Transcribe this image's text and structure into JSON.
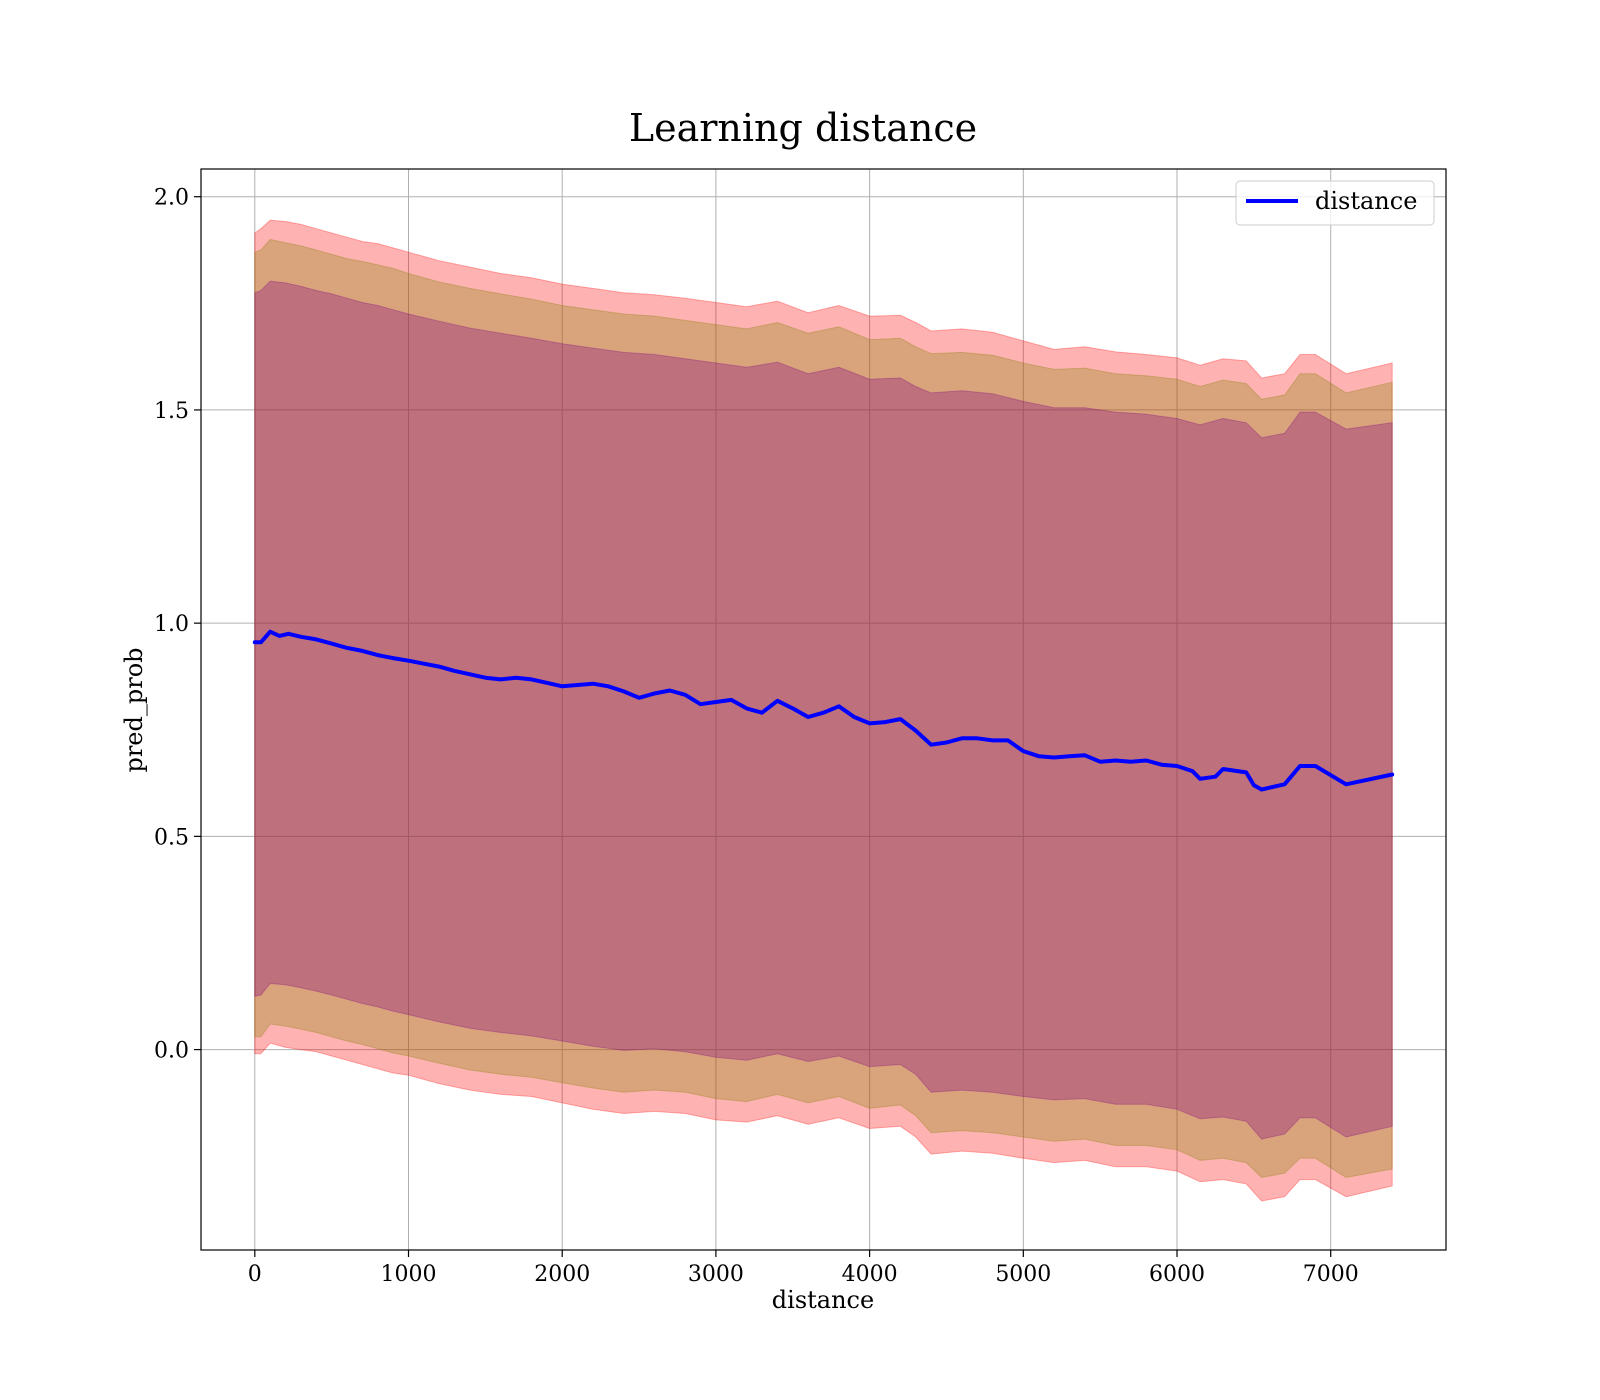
{
  "chart_data": {
    "type": "line",
    "title": "Learning distance",
    "xlabel": "distance",
    "ylabel": "pred_prob",
    "xlim": [
      -350,
      7750
    ],
    "ylim": [
      -0.47,
      2.065
    ],
    "xticks": [
      0,
      1000,
      2000,
      3000,
      4000,
      5000,
      6000,
      7000
    ],
    "xtick_labels": [
      "0",
      "1000",
      "2000",
      "3000",
      "4000",
      "5000",
      "6000",
      "7000"
    ],
    "yticks": [
      0.0,
      0.5,
      1.0,
      1.5,
      2.0
    ],
    "ytick_labels": [
      "0.0",
      "0.5",
      "1.0",
      "1.5",
      "2.0"
    ],
    "grid": true,
    "legend_position": "top-right",
    "series": [
      {
        "name": "distance",
        "color": "#0000ff",
        "x": [
          0,
          40,
          100,
          160,
          220,
          300,
          400,
          500,
          600,
          700,
          800,
          900,
          1000,
          1100,
          1200,
          1300,
          1400,
          1500,
          1600,
          1700,
          1800,
          1900,
          2000,
          2100,
          2200,
          2300,
          2400,
          2500,
          2600,
          2700,
          2800,
          2900,
          3000,
          3100,
          3200,
          3300,
          3400,
          3500,
          3600,
          3700,
          3800,
          3900,
          4000,
          4100,
          4200,
          4300,
          4400,
          4500,
          4600,
          4700,
          4800,
          4900,
          5000,
          5100,
          5200,
          5300,
          5400,
          5500,
          5600,
          5700,
          5800,
          5900,
          6000,
          6100,
          6150,
          6250,
          6300,
          6450,
          6500,
          6550,
          6700,
          6800,
          6900,
          7100,
          7400
        ],
        "y": [
          0.955,
          0.955,
          0.98,
          0.97,
          0.975,
          0.968,
          0.962,
          0.952,
          0.942,
          0.935,
          0.925,
          0.918,
          0.912,
          0.905,
          0.898,
          0.888,
          0.88,
          0.872,
          0.868,
          0.872,
          0.868,
          0.86,
          0.852,
          0.855,
          0.858,
          0.852,
          0.84,
          0.825,
          0.835,
          0.842,
          0.832,
          0.81,
          0.815,
          0.82,
          0.8,
          0.79,
          0.818,
          0.8,
          0.78,
          0.79,
          0.805,
          0.78,
          0.765,
          0.768,
          0.775,
          0.748,
          0.715,
          0.72,
          0.73,
          0.73,
          0.725,
          0.725,
          0.7,
          0.688,
          0.685,
          0.688,
          0.69,
          0.675,
          0.678,
          0.675,
          0.678,
          0.668,
          0.665,
          0.653,
          0.635,
          0.64,
          0.658,
          0.65,
          0.62,
          0.61,
          0.622,
          0.665,
          0.665,
          0.622,
          0.645
        ]
      }
    ],
    "bands": [
      {
        "color": "#ff0000",
        "opacity": 0.3,
        "x": [
          0,
          40,
          100,
          200,
          300,
          400,
          500,
          600,
          700,
          800,
          900,
          1000,
          1200,
          1400,
          1600,
          1800,
          2000,
          2200,
          2400,
          2600,
          2800,
          3000,
          3200,
          3400,
          3600,
          3800,
          4000,
          4200,
          4300,
          4400,
          4600,
          4800,
          5000,
          5200,
          5400,
          5600,
          5800,
          6000,
          6150,
          6300,
          6450,
          6550,
          6700,
          6800,
          6900,
          7100,
          7400
        ],
        "upper": [
          1.915,
          1.925,
          1.945,
          1.942,
          1.935,
          1.925,
          1.915,
          1.905,
          1.895,
          1.89,
          1.88,
          1.87,
          1.85,
          1.835,
          1.82,
          1.81,
          1.795,
          1.785,
          1.775,
          1.77,
          1.762,
          1.752,
          1.742,
          1.755,
          1.728,
          1.745,
          1.72,
          1.722,
          1.705,
          1.685,
          1.69,
          1.682,
          1.662,
          1.642,
          1.648,
          1.636,
          1.63,
          1.622,
          1.605,
          1.62,
          1.615,
          1.575,
          1.585,
          1.63,
          1.63,
          1.585,
          1.61
        ],
        "lower": [
          -0.01,
          -0.01,
          0.015,
          0.005,
          0.0,
          -0.005,
          -0.015,
          -0.025,
          -0.035,
          -0.045,
          -0.055,
          -0.06,
          -0.08,
          -0.095,
          -0.105,
          -0.11,
          -0.125,
          -0.14,
          -0.15,
          -0.145,
          -0.15,
          -0.165,
          -0.17,
          -0.155,
          -0.175,
          -0.16,
          -0.185,
          -0.18,
          -0.205,
          -0.245,
          -0.238,
          -0.243,
          -0.255,
          -0.265,
          -0.26,
          -0.275,
          -0.275,
          -0.285,
          -0.31,
          -0.305,
          -0.315,
          -0.355,
          -0.345,
          -0.305,
          -0.305,
          -0.345,
          -0.32
        ]
      },
      {
        "color": "#808000",
        "opacity": 0.3,
        "x": [
          0,
          40,
          100,
          200,
          300,
          400,
          500,
          600,
          700,
          800,
          900,
          1000,
          1200,
          1400,
          1600,
          1800,
          2000,
          2200,
          2400,
          2600,
          2800,
          3000,
          3200,
          3400,
          3600,
          3800,
          4000,
          4200,
          4300,
          4400,
          4600,
          4800,
          5000,
          5200,
          5400,
          5600,
          5800,
          6000,
          6150,
          6300,
          6450,
          6550,
          6700,
          6800,
          6900,
          7100,
          7400
        ],
        "upper": [
          1.87,
          1.875,
          1.9,
          1.892,
          1.885,
          1.875,
          1.865,
          1.855,
          1.848,
          1.84,
          1.832,
          1.82,
          1.8,
          1.785,
          1.772,
          1.76,
          1.745,
          1.735,
          1.725,
          1.72,
          1.71,
          1.7,
          1.69,
          1.705,
          1.68,
          1.695,
          1.665,
          1.668,
          1.648,
          1.632,
          1.635,
          1.628,
          1.61,
          1.595,
          1.598,
          1.585,
          1.58,
          1.572,
          1.555,
          1.57,
          1.562,
          1.525,
          1.535,
          1.585,
          1.585,
          1.54,
          1.565
        ],
        "lower": [
          0.03,
          0.03,
          0.06,
          0.055,
          0.048,
          0.04,
          0.03,
          0.02,
          0.012,
          0.002,
          -0.008,
          -0.015,
          -0.032,
          -0.048,
          -0.058,
          -0.065,
          -0.078,
          -0.09,
          -0.1,
          -0.095,
          -0.1,
          -0.115,
          -0.122,
          -0.105,
          -0.125,
          -0.11,
          -0.138,
          -0.13,
          -0.155,
          -0.195,
          -0.19,
          -0.195,
          -0.205,
          -0.215,
          -0.21,
          -0.225,
          -0.225,
          -0.235,
          -0.26,
          -0.255,
          -0.265,
          -0.3,
          -0.29,
          -0.255,
          -0.255,
          -0.3,
          -0.28
        ]
      },
      {
        "color": "#800080",
        "opacity": 0.3,
        "x": [
          0,
          40,
          100,
          200,
          300,
          400,
          500,
          600,
          700,
          800,
          900,
          1000,
          1200,
          1400,
          1600,
          1800,
          2000,
          2200,
          2400,
          2600,
          2800,
          3000,
          3200,
          3400,
          3600,
          3800,
          4000,
          4200,
          4300,
          4400,
          4600,
          4800,
          5000,
          5200,
          5400,
          5600,
          5800,
          6000,
          6150,
          6300,
          6450,
          6550,
          6700,
          6800,
          6900,
          7100,
          7400
        ],
        "upper": [
          1.775,
          1.78,
          1.802,
          1.798,
          1.79,
          1.78,
          1.772,
          1.762,
          1.752,
          1.745,
          1.735,
          1.725,
          1.708,
          1.692,
          1.68,
          1.668,
          1.655,
          1.645,
          1.635,
          1.63,
          1.62,
          1.61,
          1.6,
          1.612,
          1.585,
          1.6,
          1.572,
          1.575,
          1.555,
          1.54,
          1.545,
          1.538,
          1.52,
          1.505,
          1.505,
          1.495,
          1.49,
          1.48,
          1.465,
          1.48,
          1.47,
          1.435,
          1.445,
          1.495,
          1.495,
          1.455,
          1.47
        ],
        "lower": [
          0.125,
          0.128,
          0.155,
          0.152,
          0.145,
          0.137,
          0.128,
          0.118,
          0.108,
          0.1,
          0.09,
          0.082,
          0.065,
          0.05,
          0.04,
          0.032,
          0.02,
          0.008,
          -0.002,
          0.002,
          -0.005,
          -0.018,
          -0.025,
          -0.01,
          -0.028,
          -0.015,
          -0.04,
          -0.035,
          -0.058,
          -0.1,
          -0.095,
          -0.1,
          -0.11,
          -0.118,
          -0.115,
          -0.128,
          -0.128,
          -0.14,
          -0.162,
          -0.158,
          -0.168,
          -0.21,
          -0.198,
          -0.16,
          -0.16,
          -0.205,
          -0.18
        ]
      }
    ]
  }
}
